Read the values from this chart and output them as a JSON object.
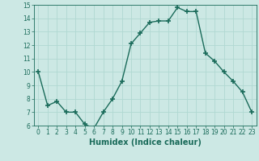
{
  "x": [
    0,
    1,
    2,
    3,
    4,
    5,
    6,
    7,
    8,
    9,
    10,
    11,
    12,
    13,
    14,
    15,
    16,
    17,
    18,
    19,
    20,
    21,
    22,
    23
  ],
  "y": [
    10,
    7.5,
    7.8,
    7.0,
    7.0,
    6.1,
    5.8,
    7.0,
    8.0,
    9.3,
    12.1,
    12.9,
    13.7,
    13.8,
    13.8,
    14.8,
    14.5,
    14.5,
    11.4,
    10.8,
    10.0,
    9.3,
    8.5,
    7.0
  ],
  "line_color": "#1a6b5a",
  "marker": "+",
  "markersize": 4,
  "linewidth": 1.0,
  "bg_color": "#cce8e4",
  "grid_color": "#b0d8d2",
  "xlabel": "Humidex (Indice chaleur)",
  "ylim": [
    6,
    15
  ],
  "xlim": [
    -0.5,
    23.5
  ],
  "yticks": [
    6,
    7,
    8,
    9,
    10,
    11,
    12,
    13,
    14,
    15
  ],
  "xticks": [
    0,
    1,
    2,
    3,
    4,
    5,
    6,
    7,
    8,
    9,
    10,
    11,
    12,
    13,
    14,
    15,
    16,
    17,
    18,
    19,
    20,
    21,
    22,
    23
  ],
  "tick_fontsize": 5.5,
  "xlabel_fontsize": 7.0
}
